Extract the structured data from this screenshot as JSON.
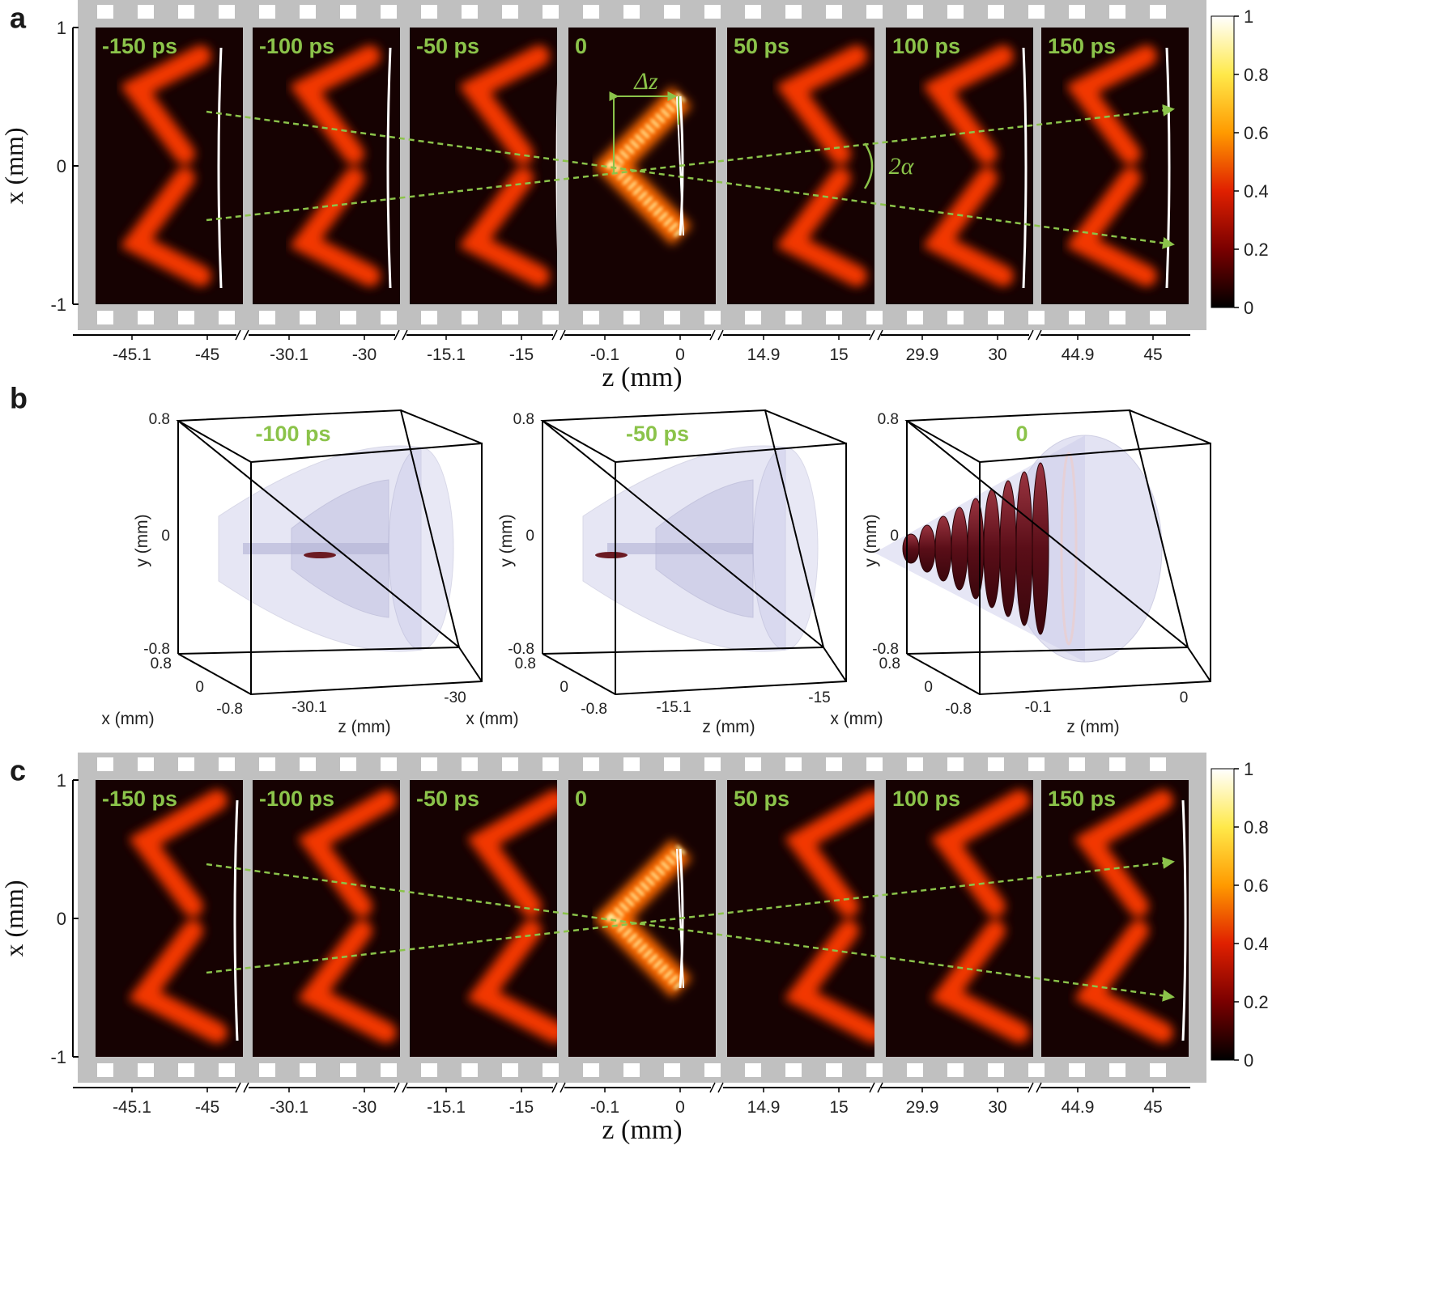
{
  "panels": {
    "a": {
      "label": "a",
      "x_axis_label": "x (mm)",
      "z_axis_label": "z (mm)",
      "x_ticks": [
        "1",
        "0",
        "-1"
      ],
      "frame_times": [
        "-150 ps",
        "-100 ps",
        "-50 ps",
        "0",
        "50 ps",
        "100 ps",
        "150 ps"
      ],
      "z_ticks": [
        [
          "-45.1",
          "-45"
        ],
        [
          "-30.1",
          "-30"
        ],
        [
          "-15.1",
          "-15"
        ],
        [
          "-0.1",
          "0"
        ],
        [
          "14.9",
          "15"
        ],
        [
          "29.9",
          "30"
        ],
        [
          "44.9",
          "45"
        ]
      ],
      "delta_z_label": "Δz",
      "angle_label": "2α"
    },
    "b": {
      "label": "b",
      "views": [
        {
          "time": "-100 ps",
          "z_ticks": [
            "-30.1",
            "-30"
          ]
        },
        {
          "time": "-50 ps",
          "z_ticks": [
            "-15.1",
            "-15"
          ]
        },
        {
          "time": "0",
          "z_ticks": [
            "-0.1",
            "0"
          ]
        }
      ],
      "y_ticks": [
        "0.8",
        "0",
        "-0.8"
      ],
      "x_ticks": [
        "0.8",
        "0",
        "-0.8"
      ],
      "y_axis_label": "y (mm)",
      "x_axis_label": "x (mm)",
      "z_axis_label": "z (mm)"
    },
    "c": {
      "label": "c",
      "x_axis_label": "x (mm)",
      "z_axis_label": "z (mm)",
      "x_ticks": [
        "1",
        "0",
        "-1"
      ],
      "frame_times": [
        "-150 ps",
        "-100 ps",
        "-50 ps",
        "0",
        "50 ps",
        "100 ps",
        "150 ps"
      ],
      "z_ticks": [
        [
          "-45.1",
          "-45"
        ],
        [
          "-30.1",
          "-30"
        ],
        [
          "-15.1",
          "-15"
        ],
        [
          "-0.1",
          "0"
        ],
        [
          "14.9",
          "15"
        ],
        [
          "29.9",
          "30"
        ],
        [
          "44.9",
          "45"
        ]
      ]
    }
  },
  "colorbar": {
    "ticks": [
      "1",
      "0.8",
      "0.6",
      "0.4",
      "0.2",
      "0"
    ],
    "values": [
      1,
      0.8,
      0.6,
      0.4,
      0.2,
      0
    ]
  },
  "colors": {
    "film": "#c0c0c0",
    "frame_bg": "#160202",
    "time_label": "#8bc34a",
    "guide_line": "#8bc34a",
    "beam_core": "#ff3a00",
    "beam_hot": "#fff1a0",
    "shell": "#c8c8e8",
    "solid": "#6b1a22"
  }
}
